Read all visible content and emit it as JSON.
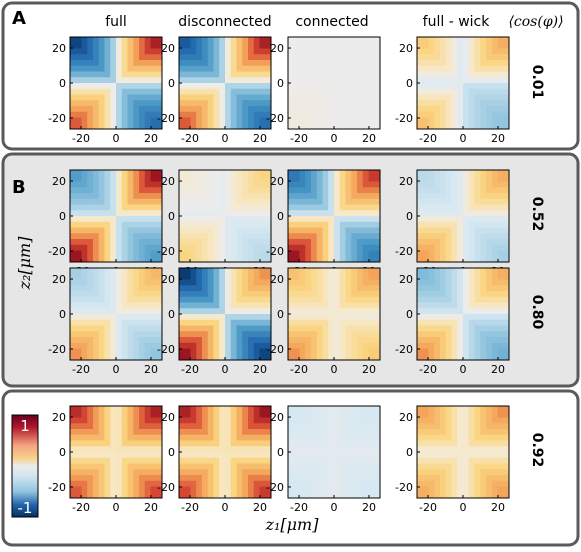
{
  "sections": [
    {
      "label": "A",
      "rows": [
        "0.01"
      ]
    },
    {
      "label": "B",
      "rows": [
        "0.52",
        "0.80"
      ]
    },
    {
      "label": "",
      "rows": [
        "0.92"
      ]
    }
  ],
  "columns": [
    "full",
    "disconnected",
    "connected",
    "full - wick"
  ],
  "corner_label": "⟨cos(φ)⟩",
  "axes": {
    "xlabel": "z₁[μm]",
    "ylabel": "z₂[μm]",
    "x_ticks": [
      "-20",
      "0",
      "20"
    ],
    "y_ticks": [
      "20",
      "0",
      "-20"
    ]
  },
  "colorbar": {
    "max_label": "1",
    "min_label": "-1"
  },
  "colors": {
    "positive": "#b2182b",
    "negative": "#2166ac",
    "neutral": "#ececec",
    "section_bg": "#e6e6e6"
  },
  "heatmaps": [
    {
      "row": "0.01",
      "cells": [
        {
          "column": "full",
          "quadrants": {
            "top_left": -0.9,
            "top_right": 0.9,
            "bottom_left": 0.7,
            "bottom_right": -0.7
          },
          "center": -0.15
        },
        {
          "column": "disconnected",
          "quadrants": {
            "top_left": -0.8,
            "top_right": 0.9,
            "bottom_left": 0.7,
            "bottom_right": -0.7
          },
          "center": -0.15
        },
        {
          "column": "connected",
          "quadrants": {
            "top_left": 0.0,
            "top_right": 0.0,
            "bottom_left": 0.03,
            "bottom_right": 0.0
          },
          "center": 0.0
        },
        {
          "column": "full - wick",
          "quadrants": {
            "top_left": 0.3,
            "top_right": 0.45,
            "bottom_left": 0.35,
            "bottom_right": -0.25
          },
          "center": -0.15
        }
      ]
    },
    {
      "row": "0.52",
      "cells": [
        {
          "column": "full",
          "quadrants": {
            "top_left": -0.45,
            "top_right": 0.95,
            "bottom_left": 0.95,
            "bottom_right": -0.45
          },
          "center": -0.1
        },
        {
          "column": "disconnected",
          "quadrants": {
            "top_left": 0.05,
            "top_right": 0.25,
            "bottom_left": 0.25,
            "bottom_right": -0.15
          },
          "center": -0.05
        },
        {
          "column": "connected",
          "quadrants": {
            "top_left": -0.65,
            "top_right": 0.8,
            "bottom_left": 0.95,
            "bottom_right": -0.6
          },
          "center": -0.05
        },
        {
          "column": "full - wick",
          "quadrants": {
            "top_left": -0.15,
            "top_right": 0.45,
            "bottom_left": 0.5,
            "bottom_right": -0.2
          },
          "center": -0.05
        }
      ]
    },
    {
      "row": "0.80",
      "cells": [
        {
          "column": "full",
          "quadrants": {
            "top_left": -0.2,
            "top_right": 0.4,
            "bottom_left": 0.55,
            "bottom_right": -0.25
          },
          "center": -0.05
        },
        {
          "column": "disconnected",
          "quadrants": {
            "top_left": -0.95,
            "top_right": 0.55,
            "bottom_left": 0.95,
            "bottom_right": -0.9
          },
          "center": -0.1
        },
        {
          "column": "connected",
          "quadrants": {
            "top_left": 0.35,
            "top_right": 0.5,
            "bottom_left": 0.55,
            "bottom_right": 0.3
          },
          "center": 0.0
        },
        {
          "column": "full - wick",
          "quadrants": {
            "top_left": -0.3,
            "top_right": 0.45,
            "bottom_left": 0.55,
            "bottom_right": -0.35
          },
          "center": -0.1
        }
      ]
    },
    {
      "row": "0.92",
      "cells": [
        {
          "column": "full",
          "quadrants": {
            "top_left": 0.85,
            "top_right": 0.9,
            "bottom_left": 0.7,
            "bottom_right": 0.75
          },
          "center": 0.0
        },
        {
          "column": "disconnected",
          "quadrants": {
            "top_left": 0.9,
            "top_right": 0.95,
            "bottom_left": 0.75,
            "bottom_right": 0.8
          },
          "center": 0.0
        },
        {
          "column": "connected",
          "quadrants": {
            "top_left": -0.08,
            "top_right": -0.08,
            "bottom_left": -0.08,
            "bottom_right": -0.08
          },
          "center": -0.05
        },
        {
          "column": "full - wick",
          "quadrants": {
            "top_left": 0.5,
            "top_right": 0.55,
            "bottom_left": 0.45,
            "bottom_right": 0.5
          },
          "center": 0.0
        }
      ]
    }
  ]
}
